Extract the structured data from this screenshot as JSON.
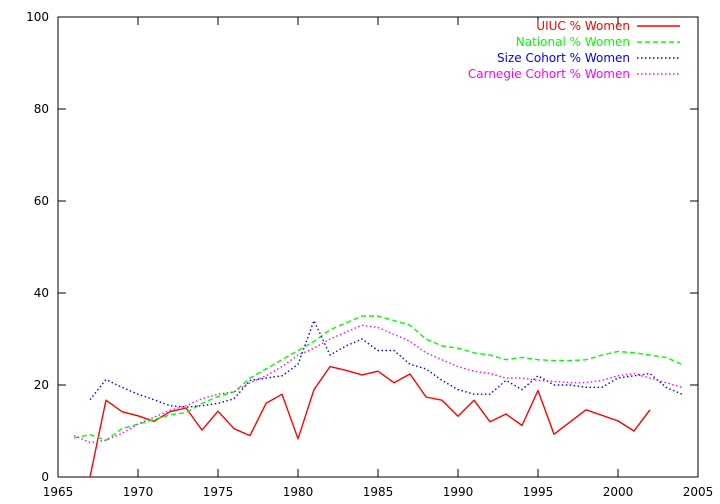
{
  "chart_data": {
    "type": "line",
    "xlim": [
      1965,
      2005
    ],
    "ylim": [
      0,
      100
    ],
    "xticks": [
      1965,
      1970,
      1975,
      1980,
      1985,
      1990,
      1995,
      2000,
      2005
    ],
    "yticks": [
      0,
      20,
      40,
      60,
      80,
      100
    ],
    "grid": false,
    "legend_position": "top-right",
    "series": [
      {
        "name": "UIUC % Women",
        "color": "#ff0000",
        "dash": "solid",
        "x": [
          1967,
          1968,
          1969,
          1970,
          1971,
          1972,
          1973,
          1974,
          1975,
          1976,
          1977,
          1978,
          1979,
          1980,
          1981,
          1982,
          1983,
          1984,
          1985,
          1986,
          1987,
          1988,
          1989,
          1990,
          1991,
          1992,
          1993,
          1994,
          1995,
          1996,
          1998,
          2000,
          2001,
          2002
        ],
        "values": [
          0,
          16.7,
          14.2,
          13.3,
          12.1,
          14.2,
          15.0,
          10.2,
          14.3,
          10.5,
          9.0,
          16.0,
          18.0,
          8.3,
          19.0,
          24.0,
          23.2,
          22.2,
          23.0,
          20.5,
          22.4,
          17.4,
          16.7,
          13.2,
          16.7,
          12.0,
          13.7,
          11.2,
          18.8,
          9.3,
          14.6,
          12.2,
          10.0,
          14.6
        ]
      },
      {
        "name": "National % Women",
        "color": "#00ff00",
        "dash": "dashed",
        "x": [
          1966,
          1967,
          1968,
          1969,
          1970,
          1971,
          1972,
          1973,
          1974,
          1975,
          1976,
          1977,
          1978,
          1979,
          1980,
          1981,
          1982,
          1983,
          1984,
          1985,
          1986,
          1987,
          1988,
          1989,
          1990,
          1991,
          1992,
          1993,
          1994,
          1995,
          1996,
          1997,
          1998,
          1999,
          2000,
          2001,
          2002,
          2003,
          2004
        ],
        "values": [
          8.5,
          9.2,
          8.0,
          10.5,
          11.5,
          12.5,
          13.5,
          14.0,
          16.0,
          17.5,
          18.5,
          21.5,
          23.5,
          25.5,
          27.5,
          29.5,
          32.0,
          33.5,
          35.0,
          35.0,
          34.0,
          33.0,
          30.0,
          28.5,
          28.0,
          27.0,
          26.5,
          25.5,
          26.0,
          25.5,
          25.3,
          25.3,
          25.5,
          26.5,
          27.3,
          27.0,
          26.5,
          26.0,
          24.5
        ]
      },
      {
        "name": "Size Cohort % Women",
        "color": "#0000ff",
        "dash": "dotted",
        "x": [
          1967,
          1968,
          1969,
          1970,
          1971,
          1972,
          1973,
          1974,
          1975,
          1976,
          1977,
          1978,
          1979,
          1980,
          1981,
          1982,
          1983,
          1984,
          1985,
          1986,
          1987,
          1988,
          1989,
          1990,
          1991,
          1992,
          1993,
          1994,
          1995,
          1996,
          1997,
          1998,
          1999,
          2000,
          2001,
          2002,
          2003,
          2004
        ],
        "values": [
          16.8,
          21.2,
          19.5,
          18.0,
          16.8,
          15.5,
          15.2,
          15.5,
          16.0,
          17.0,
          21.0,
          21.5,
          22.0,
          24.5,
          34.0,
          26.5,
          28.5,
          30.0,
          27.5,
          27.5,
          24.5,
          23.5,
          21.0,
          19.0,
          18.0,
          18.0,
          21.0,
          19.0,
          22.0,
          20.0,
          20.0,
          19.5,
          19.5,
          21.5,
          22.0,
          22.5,
          19.5,
          18.0
        ]
      },
      {
        "name": "Carnegie Cohort % Women",
        "color": "#ff00ff",
        "dash": "dotted",
        "x": [
          1966,
          1967,
          1968,
          1969,
          1970,
          1971,
          1972,
          1973,
          1974,
          1975,
          1976,
          1977,
          1978,
          1979,
          1980,
          1981,
          1982,
          1983,
          1984,
          1985,
          1986,
          1987,
          1988,
          1989,
          1990,
          1991,
          1992,
          1993,
          1994,
          1995,
          1996,
          1997,
          1998,
          1999,
          2000,
          2001,
          2002,
          2003,
          2004
        ],
        "values": [
          9.0,
          7.5,
          8.0,
          9.5,
          11.5,
          13.0,
          14.5,
          15.5,
          17.0,
          18.0,
          18.5,
          20.5,
          22.0,
          24.0,
          26.5,
          28.0,
          30.0,
          31.5,
          33.0,
          32.5,
          31.0,
          29.5,
          27.0,
          25.5,
          24.0,
          23.0,
          22.5,
          21.5,
          21.5,
          21.0,
          20.8,
          20.5,
          20.5,
          21.0,
          22.0,
          22.5,
          21.5,
          20.5,
          19.5
        ]
      }
    ]
  }
}
